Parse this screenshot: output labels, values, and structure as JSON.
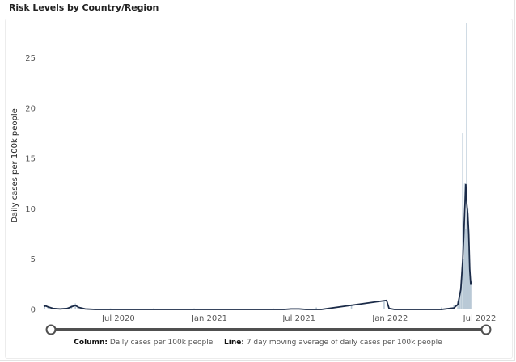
{
  "title": "Risk Levels by Country/Region",
  "legend": {
    "column_key": "Column:",
    "column_value": "Daily cases per 100k people",
    "line_key": "Line:",
    "line_value": "7 day moving average of daily cases per 100k people"
  },
  "colors": {
    "bars": "#b9c9d6",
    "line": "#1b2b48",
    "axis_text": "#555555",
    "slider_track": "#505050",
    "slider_handle_fill": "#ffffff"
  },
  "chart_data": {
    "type": "bar",
    "ylabel": "Daily cases per 100k people",
    "xlabel": "",
    "ylim": [
      0,
      28.5
    ],
    "yticks": [
      0,
      5,
      10,
      15,
      20,
      25
    ],
    "x_range": [
      "2020-02-01",
      "2022-08-01"
    ],
    "xticks": [
      {
        "date": "2020-07-01",
        "label": "Jul 2020"
      },
      {
        "date": "2021-01-01",
        "label": "Jan 2021"
      },
      {
        "date": "2021-07-01",
        "label": "Jul 2021"
      },
      {
        "date": "2022-01-01",
        "label": "Jan 2022"
      },
      {
        "date": "2022-07-01",
        "label": "Jul 2022"
      }
    ],
    "grid": false,
    "legend_position": "bottom",
    "series": [
      {
        "name": "Daily cases per 100k people",
        "type": "column",
        "points": [
          [
            "2020-02-03",
            0.4
          ],
          [
            "2020-02-10",
            0.3
          ],
          [
            "2020-02-18",
            0.2
          ],
          [
            "2020-02-26",
            0.1
          ],
          [
            "2020-03-20",
            0.2
          ],
          [
            "2020-03-28",
            0.4
          ],
          [
            "2020-04-05",
            0.6
          ],
          [
            "2020-04-10",
            0.3
          ],
          [
            "2020-04-18",
            0.1
          ],
          [
            "2020-06-15",
            0.1
          ],
          [
            "2020-09-10",
            0.1
          ],
          [
            "2020-12-01",
            0.1
          ],
          [
            "2021-05-10",
            0.1
          ],
          [
            "2021-08-05",
            0.2
          ],
          [
            "2021-10-15",
            0.5
          ],
          [
            "2021-12-20",
            0.9
          ],
          [
            "2022-04-15",
            0.2
          ],
          [
            "2022-05-10",
            0.4
          ],
          [
            "2022-05-18",
            0.8
          ],
          [
            "2022-05-22",
            1.5
          ],
          [
            "2022-05-25",
            3.0
          ],
          [
            "2022-05-28",
            17.5
          ],
          [
            "2022-05-30",
            5.0
          ],
          [
            "2022-06-01",
            12.5
          ],
          [
            "2022-06-03",
            8.0
          ],
          [
            "2022-06-05",
            28.5
          ],
          [
            "2022-06-07",
            10.0
          ],
          [
            "2022-06-09",
            6.0
          ],
          [
            "2022-06-11",
            4.0
          ],
          [
            "2022-06-13",
            2.5
          ]
        ]
      },
      {
        "name": "7 day moving average of daily cases per 100k people",
        "type": "line",
        "points": [
          [
            "2020-02-01",
            0.3
          ],
          [
            "2020-02-05",
            0.35
          ],
          [
            "2020-02-10",
            0.25
          ],
          [
            "2020-02-20",
            0.1
          ],
          [
            "2020-03-05",
            0.05
          ],
          [
            "2020-03-20",
            0.1
          ],
          [
            "2020-03-30",
            0.3
          ],
          [
            "2020-04-05",
            0.4
          ],
          [
            "2020-04-12",
            0.2
          ],
          [
            "2020-04-25",
            0.05
          ],
          [
            "2020-05-15",
            0.0
          ],
          [
            "2021-06-01",
            0.0
          ],
          [
            "2021-06-15",
            0.05
          ],
          [
            "2021-07-01",
            0.05
          ],
          [
            "2021-07-15",
            0.0
          ],
          [
            "2021-08-15",
            0.0
          ],
          [
            "2021-12-25",
            0.9
          ],
          [
            "2021-12-30",
            0.1
          ],
          [
            "2022-01-10",
            0.0
          ],
          [
            "2022-04-15",
            0.0
          ],
          [
            "2022-05-10",
            0.15
          ],
          [
            "2022-05-18",
            0.5
          ],
          [
            "2022-05-24",
            2.0
          ],
          [
            "2022-05-28",
            5.0
          ],
          [
            "2022-06-01",
            10.0
          ],
          [
            "2022-06-03",
            12.4
          ],
          [
            "2022-06-05",
            10.5
          ],
          [
            "2022-06-07",
            9.5
          ],
          [
            "2022-06-09",
            7.5
          ],
          [
            "2022-06-11",
            4.0
          ],
          [
            "2022-06-13",
            2.5
          ],
          [
            "2022-06-14",
            2.8
          ]
        ]
      }
    ],
    "range_slider": {
      "start": "2020-02-01",
      "end": "2022-08-01"
    }
  }
}
